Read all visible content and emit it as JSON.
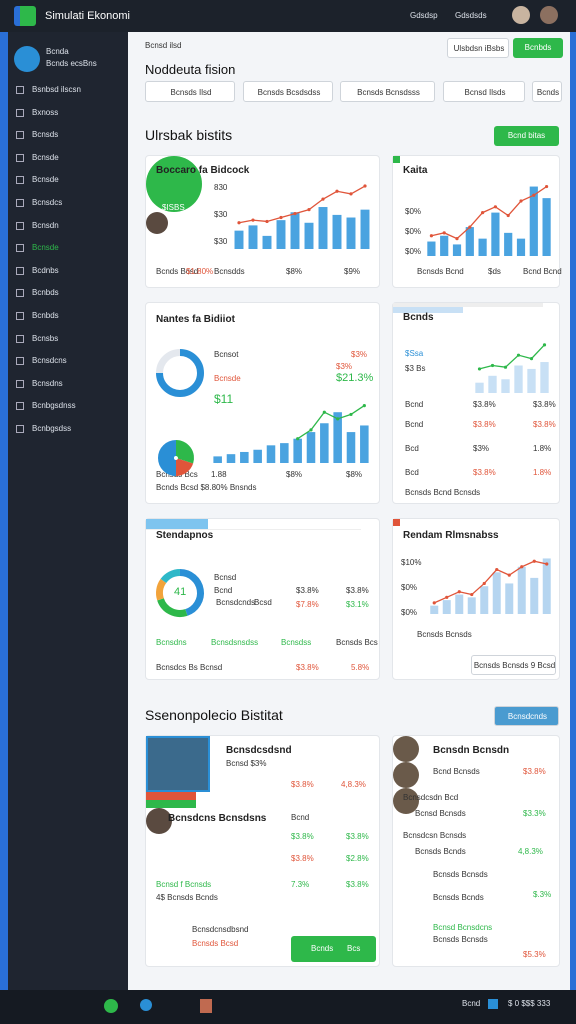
{
  "app": {
    "title": "Simulati Ekonomi",
    "links": [
      "Gdsdsp",
      "Gdsdsds"
    ],
    "taskbar": [
      "Bcnd",
      "$ 0 $$$ 333"
    ]
  },
  "sidebar": {
    "user": "Bcnda",
    "user_sub": "Bcnds ecsBns",
    "menu": [
      "Bsnbsd ilscsn",
      "Bxnoss",
      "Bcnsds",
      "Bcnsde",
      "Bcnsde",
      "Bcnsdcs",
      "Bcnsdn",
      "Bcnsde",
      "Bcdnbs",
      "Bcnbds",
      "Bcnbds",
      "Bcnsbs",
      "Bcnsdcns",
      "Bcnsdns",
      "Bcnbgsdnss",
      "Bcnbgsdss"
    ]
  },
  "header": {
    "crumb": "Bcnsd ilsd",
    "title": "Noddeuta fision",
    "buttons": [
      "Ulsbdsn iBsbs",
      "Bcnbds"
    ],
    "tabs": [
      "Bcnsds Ilsd",
      "Bcnsds Bcsdsdss",
      "Bcnsds Bcnsdsss",
      "Bcnsd Ilsds",
      "Bcnds"
    ]
  },
  "section1": {
    "title": "Ulrsbak bistits",
    "button": "Bcnd bitas"
  },
  "section2": {
    "title": "Ssenonpolecio Bistitat",
    "button": "Bcnsdcnds"
  },
  "cards": [
    {
      "title": "Boccaro fa Bidcock",
      "badge": "$ISBS",
      "yticks": [
        "830",
        "$30",
        "$30"
      ],
      "bars": [
        14,
        18,
        10,
        22,
        28,
        20,
        32,
        26,
        24,
        30
      ],
      "line": [
        20,
        22,
        21,
        24,
        27,
        30,
        38,
        44,
        42,
        48
      ],
      "bar_color": "#4aa3e0",
      "line_color": "#e0553a",
      "footer": [
        "Bcnds Bcsd",
        "$1.80%",
        "Bcnsdds",
        "$8%",
        "$9%"
      ]
    },
    {
      "title": "Kaita",
      "yticks": [
        "$0%",
        "$0%",
        "$0%"
      ],
      "bars": [
        10,
        14,
        8,
        20,
        12,
        30,
        16,
        12,
        48,
        40
      ],
      "line": [
        14,
        16,
        12,
        20,
        30,
        34,
        28,
        38,
        42,
        48
      ],
      "bar_color": "#4aa3e0",
      "line_color": "#e0553a",
      "footer": [
        "Bcnsds Bcnd",
        "$ds",
        "Bcnd Bcnd"
      ]
    },
    {
      "title": "Nantes fa Bidiiot",
      "labels": [
        "Bcnsot",
        "Bcnsde",
        "$3%",
        "$3%",
        "$21.3%",
        "$11",
        "Bcnsds Bcs",
        "1.88",
        "$8%",
        "$8%",
        "Bcnds Bcsd $8.80% Bnsnds"
      ],
      "bars": [
        6,
        8,
        10,
        12,
        16,
        18,
        22,
        28,
        36,
        46,
        28,
        34
      ],
      "line": [
        null,
        null,
        null,
        null,
        null,
        null,
        22,
        30,
        46,
        40,
        44,
        52
      ],
      "bar_color": "#4aa3e0",
      "line_color": "#2eb84a"
    },
    {
      "title": "Bcnds",
      "labels": [
        "$Ssa",
        "$3 Bs",
        "Bcnd",
        "$3.8%",
        "$3.8%",
        "Bcnd",
        "$3.8%",
        "$3.8%",
        "Bcd",
        "$3%",
        "1.8%",
        "Bcd",
        "$3.8%",
        "1.8%",
        "Bcnsds Bcnd Bcnsds"
      ],
      "bars": [
        6,
        10,
        8,
        16,
        14,
        18
      ],
      "line": [
        14,
        16,
        15,
        22,
        20,
        28
      ],
      "bar_color": "#c8e0f5",
      "line_color": "#2eb84a"
    },
    {
      "title": "Stendapnos",
      "labels": [
        "41",
        "Bcnsd",
        "Bcnd",
        "Bcnsdcnds",
        "Bcsd",
        "$3.8%",
        "$3.8%",
        "$7.8%",
        "$3.1%",
        "Bcnsdns",
        "Bcnsdsnsdss",
        "Bcnsdss",
        "Bcnsds Bcs",
        "Bcnsdcs Bs Bcnsd",
        "$3.8%",
        "5.8%"
      ]
    },
    {
      "title": "Rendam Rlmsnabss",
      "yticks": [
        "$10%",
        "$0%",
        "$0%"
      ],
      "bars": [
        6,
        10,
        14,
        12,
        20,
        30,
        22,
        34,
        26,
        40
      ],
      "line": [
        8,
        12,
        16,
        14,
        22,
        32,
        28,
        34,
        38,
        36
      ],
      "bar_color": "#b5d5f0",
      "line_color": "#e0553a",
      "footer": [
        "Bcnsds Bcnsds",
        "Bcnsds Bcnsds 9 Bcsd"
      ]
    },
    {
      "labels": [
        "Bcnsdcsdsnd",
        "Bcnsd $3%",
        "$3.8%",
        "4,8.3%",
        "Bcnsdcns Bcnsdsns",
        "Bcnd",
        "$3.8%",
        "$3.8%",
        "$3.8%",
        "$2.8%",
        "Bcnsd f Bcnsds",
        "7.3%",
        "$3.8%",
        "4$ Bcnsds Bcnds",
        "Bcnsdcnsdbsnd",
        "Bcnsds Bcsd",
        "Bcnds",
        "Bcs"
      ]
    },
    {
      "labels": [
        "Bcnsdn Bcnsdn",
        "Bcnd Bcnsds",
        "$3.8%",
        "Bcnsdcsdn Bcd",
        "Bcnsd Bcnsds",
        "$3.3%",
        "Bcnsdcsn Bcnsds",
        "Bcnsds Bcnds",
        "4,8.3%",
        "Bcnsds Bcnsds",
        "Bcnsds Bcnds",
        "$.3%",
        "Bcnsd Bcnsdcns",
        "Bcnsds Bcnsds",
        "$5.3%"
      ]
    }
  ]
}
